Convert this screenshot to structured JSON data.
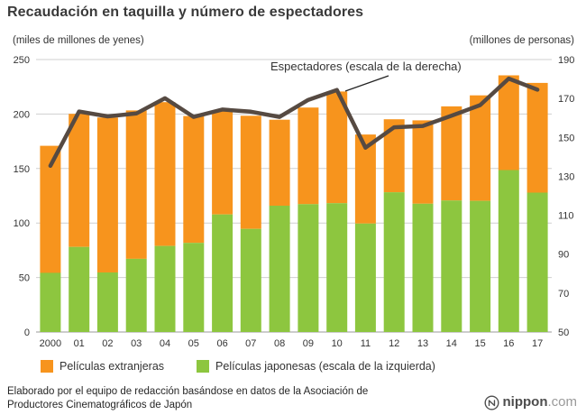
{
  "header": {
    "title": "Recaudación en taquilla y número de espectadores"
  },
  "axes": {
    "left_unit": "(miles de millones de yenes)",
    "right_unit": "(millones de personas)"
  },
  "annotation": {
    "text": "Espectadores (escala de la derecha)"
  },
  "legend": [
    {
      "label": "Películas extranjeras"
    },
    {
      "label": "Películas japonesas (escala de la izquierda)"
    }
  ],
  "footer": {
    "line1": "Elaborado por el equipo de redacción basándose en datos de la Asociación de",
    "line2": "Productores Cinematográficos de Japón"
  },
  "brand": {
    "bold": "nippon",
    "light": ".com"
  },
  "chart_data": {
    "type": "bar",
    "subtype": "stacked-bars-with-line-overlay",
    "title": "Recaudación en taquilla y número de espectadores",
    "categories": [
      "2000",
      "01",
      "02",
      "03",
      "04",
      "05",
      "06",
      "07",
      "08",
      "09",
      "10",
      "11",
      "12",
      "13",
      "14",
      "15",
      "16",
      "17"
    ],
    "series": [
      {
        "name": "Películas japonesas (escala de la izquierda)",
        "type": "bar",
        "stack": "bottom",
        "color": "#8dc63f",
        "axis": "left",
        "values": [
          54.3,
          78.1,
          54.6,
          67.1,
          79.0,
          81.8,
          107.9,
          94.6,
          115.9,
          117.3,
          118.2,
          99.5,
          128.2,
          117.7,
          120.7,
          120.4,
          148.6,
          127.9
        ]
      },
      {
        "name": "Películas extranjeras",
        "type": "bar",
        "stack": "top",
        "color": "#f7941d",
        "axis": "left",
        "values": [
          116.6,
          122.1,
          142.2,
          136.2,
          131.9,
          116.4,
          94.6,
          103.8,
          78.9,
          88.7,
          102.5,
          81.7,
          67.0,
          76.5,
          86.3,
          96.7,
          86.9,
          100.7
        ]
      },
      {
        "name": "Espectadores (escala de la derecha)",
        "type": "line",
        "color": "#564a42",
        "axis": "right",
        "values": [
          135.4,
          163.3,
          160.8,
          162.3,
          170.1,
          160.5,
          164.3,
          163.2,
          160.5,
          169.3,
          174.4,
          144.7,
          155.2,
          155.9,
          161.1,
          166.6,
          180.2,
          174.5
        ]
      }
    ],
    "left_axis": {
      "label": "(miles de millones de yenes)",
      "min": 0,
      "max": 250,
      "step": 50
    },
    "right_axis": {
      "label": "(millones de personas)",
      "min": 50,
      "max": 190,
      "step": 20
    },
    "grid": "horizontal",
    "legend_position": "bottom"
  }
}
